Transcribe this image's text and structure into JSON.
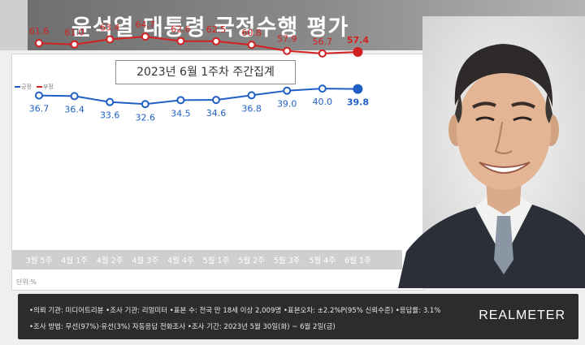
{
  "header": {
    "title": "윤석열 대통령 국정수행 평가"
  },
  "chart_data": {
    "type": "line",
    "title": "윤석열 대통령 국정수행 평가",
    "subtitle": "2023년 6월 1주차 주간집계",
    "categories": [
      "3월 5주",
      "4월 1주",
      "4월 2주",
      "4월 3주",
      "4월 4주",
      "5월 1주",
      "5월 2주",
      "5월 3주",
      "5월 4주",
      "6월 1주"
    ],
    "series": [
      {
        "name": "부정",
        "color": "#d32020",
        "values": [
          61.6,
          61.0,
          63.4,
          64.7,
          62.6,
          62.5,
          60.8,
          57.9,
          56.7,
          57.4
        ]
      },
      {
        "name": "긍정",
        "color": "#1f5fc4",
        "values": [
          36.7,
          36.4,
          33.6,
          32.6,
          34.5,
          34.6,
          36.8,
          39.0,
          40.0,
          39.8
        ]
      }
    ],
    "legend_labels": [
      "긍정",
      "부정"
    ],
    "unit": "단위:%",
    "legend_position": "top-left",
    "grid": false
  },
  "footer": {
    "line1": "•의뢰 기관: 미디어트리뷴 •조사 기관: 리얼미터 •표본 수: 전국 만 18세 이상 2,009명 •표본오차: ±2.2%P(95% 신뢰수준) •응답률: 3.1%",
    "line2": "•조사 방법: 무선(97%)·유선(3%) 자동응답 전화조사 •조사 기간: 2023년 5월 30일(화) ~ 6월 2일(금)",
    "brand": "REALMETER"
  }
}
